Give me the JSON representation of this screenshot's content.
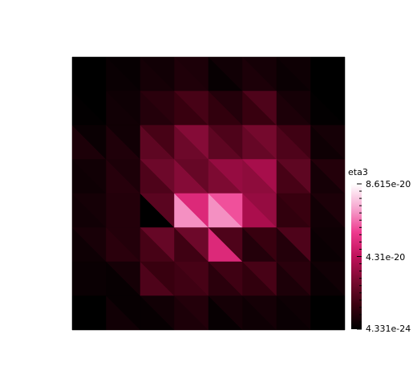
{
  "chart_data": {
    "type": "heatmap",
    "mesh": "triangulated-grid",
    "rows": 8,
    "cols": 8,
    "triangles_per_cell": 2,
    "colorbar": {
      "title": "eta3",
      "min_label": "4.331e-24",
      "mid_label": "4.31e-20",
      "max_label": "8.615e-20",
      "min": 4.331e-24,
      "max": 8.615e-20,
      "colormap": [
        "#000000",
        "#3a0010",
        "#7a0a30",
        "#c0105a",
        "#ee3a8e",
        "#f6a6cf",
        "#ffffff"
      ]
    },
    "cells_lower": [
      [
        0.0,
        0.03,
        0.06,
        0.09,
        0.02,
        0.08,
        0.03,
        0.0
      ],
      [
        0.01,
        0.05,
        0.1,
        0.16,
        0.14,
        0.16,
        0.08,
        0.01
      ],
      [
        0.08,
        0.09,
        0.26,
        0.3,
        0.26,
        0.28,
        0.22,
        0.04
      ],
      [
        0.04,
        0.11,
        0.22,
        0.36,
        0.34,
        0.38,
        0.2,
        0.06
      ],
      [
        0.05,
        0.1,
        0.0,
        0.8,
        0.8,
        0.45,
        0.14,
        0.05
      ],
      [
        0.04,
        0.12,
        0.2,
        0.18,
        0.6,
        0.1,
        0.1,
        0.03
      ],
      [
        0.03,
        0.02,
        0.22,
        0.18,
        0.12,
        0.14,
        0.08,
        0.03
      ],
      [
        0.0,
        0.05,
        0.02,
        0.08,
        0.02,
        0.04,
        0.03,
        0.0
      ]
    ],
    "cells_upper": [
      [
        0.0,
        0.02,
        0.05,
        0.08,
        0.05,
        0.06,
        0.04,
        0.0
      ],
      [
        0.0,
        0.04,
        0.12,
        0.2,
        0.1,
        0.22,
        0.06,
        0.0
      ],
      [
        0.03,
        0.05,
        0.2,
        0.36,
        0.22,
        0.32,
        0.18,
        0.06
      ],
      [
        0.05,
        0.08,
        0.3,
        0.28,
        0.4,
        0.44,
        0.26,
        0.1
      ],
      [
        0.06,
        0.1,
        0.25,
        0.6,
        0.7,
        0.4,
        0.16,
        0.08
      ],
      [
        0.07,
        0.1,
        0.28,
        0.3,
        0.22,
        0.16,
        0.22,
        0.04
      ],
      [
        0.03,
        0.06,
        0.16,
        0.2,
        0.18,
        0.2,
        0.12,
        0.05
      ],
      [
        0.0,
        0.02,
        0.05,
        0.1,
        0.06,
        0.06,
        0.04,
        0.0
      ]
    ],
    "note_scale": "cell values are fractions of the colorbar range"
  }
}
